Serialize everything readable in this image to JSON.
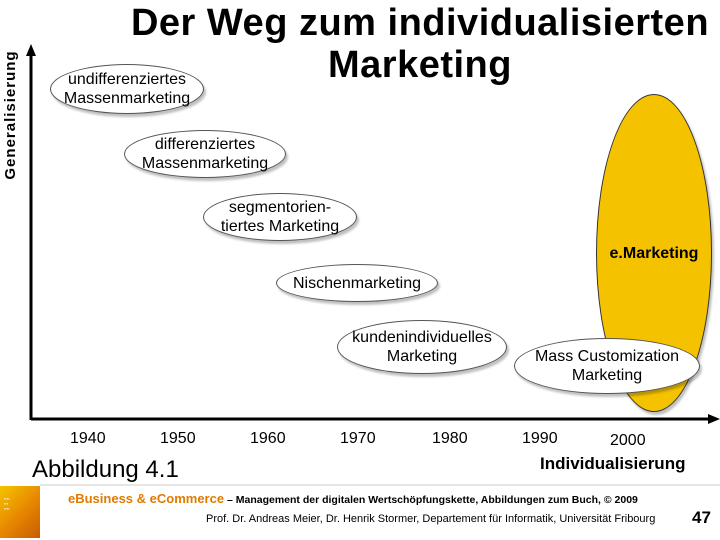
{
  "title": {
    "line1": "Der Weg zum individualisierten",
    "line2": "Marketing"
  },
  "axes": {
    "y_label": "Generalisierung",
    "x_label": "Individualisierung",
    "ticks": [
      "1940",
      "1950",
      "1960",
      "1970",
      "1980",
      "1990",
      "2000"
    ]
  },
  "nodes": [
    {
      "id": "undiff",
      "line1": "undifferenziertes",
      "line2": "Massenmarketing"
    },
    {
      "id": "diff",
      "line1": "differenziertes",
      "line2": "Massenmarketing"
    },
    {
      "id": "segment",
      "line1": "segmentorien-",
      "line2": "tiertes Marketing"
    },
    {
      "id": "nische",
      "line1": "Nischenmarketing",
      "line2": ""
    },
    {
      "id": "kunden",
      "line1": "kundenindividuelles",
      "line2": "Marketing"
    },
    {
      "id": "mass",
      "line1": "Mass Customization",
      "line2": "Marketing"
    },
    {
      "id": "emarketing",
      "line1": "e.Marketing",
      "line2": ""
    }
  ],
  "caption": "Abbildung 4.1",
  "footer": {
    "line1_accent": "eBusiness & eCommerce",
    "line1_rest": " – Management der digitalen Wertschöpfungskette, Abbildungen zum Buch, © 2009",
    "line2": "Prof. Dr. Andreas Meier, Dr. Henrik Stormer, Departement für Informatik, Universität Fribourg",
    "page": "47"
  },
  "colors": {
    "gold": "#f5c200",
    "accent": "#e07b00",
    "axis": "#000000"
  }
}
